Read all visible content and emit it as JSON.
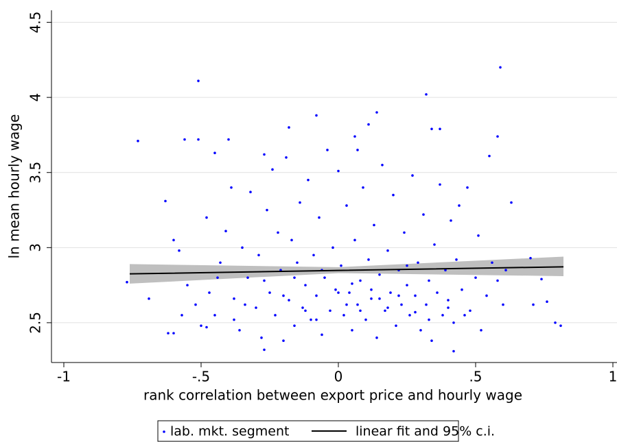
{
  "chart_data": {
    "type": "scatter",
    "x_label": "rank correlation between export price and hourly wage",
    "y_label": "ln mean hourly wage",
    "xlim": [
      -1.045,
      1.015
    ],
    "ylim": [
      2.235,
      4.58
    ],
    "xticks": [
      -1,
      {
        "value": -0.5,
        "label": "-.5"
      },
      0,
      {
        "value": 0.5,
        "label": ".5"
      },
      1
    ],
    "yticks": [
      2.5,
      3,
      3.5,
      4,
      4.5
    ],
    "grid": true,
    "legend": "bottom",
    "series": [
      {
        "name": "lab. mkt. segment",
        "color": "#0000ff",
        "x": [
          -0.51,
          0.59,
          0.32,
          -0.73,
          -0.56,
          -0.51,
          -0.18,
          -0.08,
          0.14,
          0.11,
          0.34,
          0.37,
          0.58,
          -0.4,
          -0.45,
          -0.27,
          0.55,
          0.06,
          0.07,
          -0.63,
          -0.48,
          0.63,
          0.74,
          0.79,
          0.81,
          -0.77,
          -0.69,
          0.7,
          0.76,
          0.71,
          0.42,
          -0.27,
          -0.62,
          -0.6,
          -0.55,
          -0.52,
          -0.5,
          -0.47,
          -0.45,
          -0.43,
          -0.41,
          -0.39,
          -0.38,
          -0.36,
          -0.35,
          -0.33,
          -0.32,
          -0.3,
          -0.29,
          -0.28,
          -0.26,
          -0.25,
          -0.24,
          -0.23,
          -0.22,
          -0.21,
          -0.2,
          -0.19,
          -0.18,
          -0.17,
          -0.16,
          -0.15,
          -0.14,
          -0.13,
          -0.12,
          -0.11,
          -0.1,
          -0.09,
          -0.08,
          -0.07,
          -0.06,
          -0.05,
          -0.04,
          -0.03,
          -0.02,
          -0.01,
          0.0,
          0.01,
          0.02,
          0.03,
          0.04,
          0.05,
          0.06,
          0.07,
          0.08,
          0.09,
          0.1,
          0.11,
          0.12,
          0.13,
          0.14,
          0.15,
          0.16,
          0.17,
          0.18,
          0.19,
          0.2,
          0.21,
          0.22,
          0.23,
          0.24,
          0.25,
          0.26,
          0.27,
          0.28,
          0.29,
          0.3,
          0.31,
          0.32,
          0.33,
          0.34,
          0.35,
          0.36,
          0.37,
          0.38,
          0.39,
          0.4,
          0.41,
          0.42,
          0.43,
          0.45,
          0.47,
          0.48,
          0.5,
          0.51,
          0.52,
          0.54,
          0.56,
          0.58,
          0.6,
          0.61,
          -0.58,
          -0.6,
          -0.57,
          -0.48,
          -0.44,
          -0.34,
          -0.27,
          -0.2,
          -0.12,
          -0.06,
          0.0,
          0.03,
          0.05,
          0.08,
          0.12,
          0.18,
          0.22,
          0.28,
          0.33,
          0.4,
          0.46,
          -0.16,
          -0.08,
          0.15,
          0.25,
          -0.38,
          0.44
        ],
        "values": [
          4.11,
          4.2,
          4.02,
          3.71,
          3.72,
          3.72,
          3.8,
          3.88,
          3.9,
          3.82,
          3.79,
          3.79,
          3.74,
          3.72,
          3.63,
          3.62,
          3.61,
          3.74,
          3.65,
          3.31,
          3.2,
          3.3,
          2.79,
          2.5,
          2.48,
          2.77,
          2.66,
          2.93,
          2.64,
          2.62,
          2.31,
          2.32,
          2.43,
          2.43,
          2.75,
          2.62,
          2.48,
          2.7,
          2.55,
          2.9,
          3.11,
          3.4,
          2.66,
          2.45,
          3.0,
          2.8,
          3.37,
          2.6,
          2.95,
          2.4,
          3.25,
          2.7,
          3.52,
          2.55,
          3.1,
          2.85,
          2.38,
          3.6,
          2.65,
          3.05,
          2.48,
          2.9,
          3.3,
          2.6,
          2.75,
          3.45,
          2.52,
          2.95,
          2.68,
          3.2,
          2.42,
          2.8,
          3.65,
          2.58,
          3.0,
          2.72,
          3.51,
          2.88,
          2.55,
          3.28,
          2.7,
          2.45,
          3.05,
          2.62,
          2.78,
          3.4,
          2.52,
          2.92,
          2.66,
          3.15,
          2.4,
          2.82,
          3.55,
          2.58,
          2.98,
          2.7,
          3.35,
          2.48,
          2.85,
          2.62,
          3.1,
          2.75,
          2.55,
          3.48,
          2.68,
          2.9,
          2.45,
          3.22,
          2.62,
          2.78,
          2.38,
          3.02,
          2.7,
          3.42,
          2.55,
          2.85,
          2.65,
          3.18,
          2.5,
          2.92,
          2.72,
          3.4,
          2.58,
          2.8,
          3.08,
          2.45,
          2.68,
          2.9,
          2.78,
          2.62,
          2.85,
          2.98,
          3.05,
          2.55,
          2.47,
          2.8,
          2.62,
          2.78,
          2.68,
          2.58,
          2.85,
          2.7,
          2.62,
          2.76,
          2.58,
          2.72,
          2.6,
          2.68,
          2.57,
          2.52,
          2.6,
          2.55,
          2.8,
          2.52,
          2.66,
          2.88,
          2.52,
          3.28
        ]
      }
    ],
    "fit": {
      "name": "linear fit and 95% c.i.",
      "color": "#000000",
      "ci_color": "#bfbfbf",
      "x": [
        -0.76,
        0,
        0.82
      ],
      "values": [
        2.825,
        2.848,
        2.872
      ],
      "ci_lower": [
        2.76,
        2.83,
        2.81
      ],
      "ci_upper": [
        2.89,
        2.87,
        2.94
      ]
    }
  }
}
